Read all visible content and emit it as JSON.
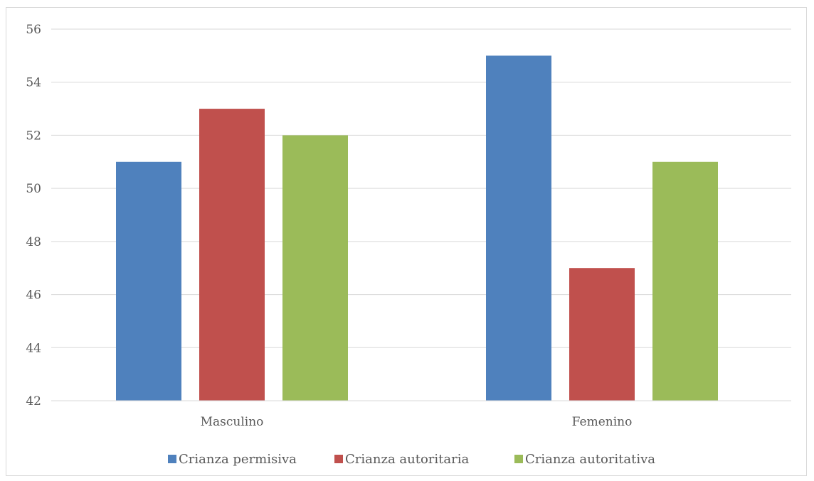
{
  "chart_data": {
    "type": "bar",
    "categories": [
      "Masculino",
      "Femenino"
    ],
    "series": [
      {
        "name": "Crianza permisiva",
        "values": [
          51,
          55
        ],
        "color": "#4f81bd"
      },
      {
        "name": "Crianza autoritaria",
        "values": [
          53,
          47
        ],
        "color": "#c0504d"
      },
      {
        "name": "Crianza autoritativa",
        "values": [
          52,
          51
        ],
        "color": "#9bbb59"
      }
    ],
    "ylim": [
      42,
      56
    ],
    "yticks": [
      42,
      44,
      46,
      48,
      50,
      52,
      54,
      56
    ],
    "grid": true,
    "legend_position": "bottom"
  }
}
